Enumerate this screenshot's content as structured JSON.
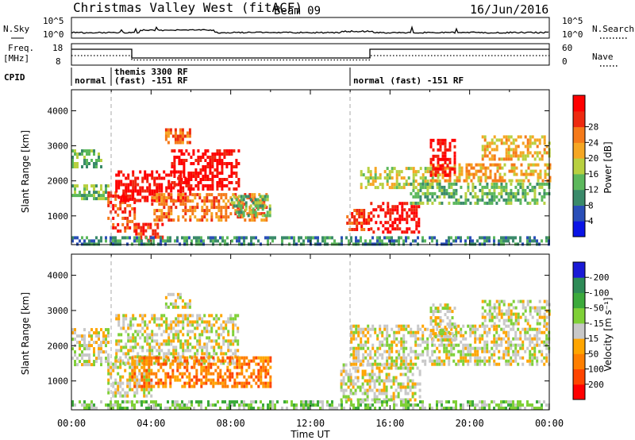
{
  "header": {
    "station": "Christmas Valley West (fitACF)",
    "beam": "Beam 09",
    "date": "16/Jun/2016"
  },
  "noise_panel": {
    "left_label": "N.Sky",
    "left_ticks": [
      "10^5",
      "10^0"
    ],
    "right_ticks": [
      "10^5",
      "10^0"
    ],
    "right_label": "N.Search"
  },
  "freq_panel": {
    "left_label_1": "Freq.",
    "left_label_2": "[MHz]",
    "left_ticks": [
      "18",
      "8"
    ],
    "right_ticks": [
      "60",
      "0"
    ],
    "right_label": "Nave"
  },
  "cpid": {
    "label": "CPID",
    "segments": [
      {
        "line1": "normal",
        "line2": ""
      },
      {
        "line1": "themis 3300 RF",
        "line2": "(fast) -151 RF"
      },
      {
        "line1": "normal (fast) -151 RF",
        "line2": ""
      }
    ]
  },
  "x_axis": {
    "label": "Time UT",
    "ticks": [
      "00:00",
      "04:00",
      "08:00",
      "12:00",
      "16:00",
      "20:00",
      "00:00"
    ]
  },
  "colors": {
    "power": [
      "#0a14e6",
      "#2a4fb8",
      "#3a8a6a",
      "#5cb85c",
      "#b8d040",
      "#f5a623",
      "#f57a1a",
      "#ee2a10",
      "#ff0000"
    ],
    "velocity": [
      "#1a1ad6",
      "#2e8b57",
      "#3caa3c",
      "#7fd037",
      "#c8c8c8",
      "#ffa500",
      "#ff7f00",
      "#ff4500",
      "#ff0000"
    ]
  },
  "chart_data": [
    {
      "type": "heatmap",
      "title": "Power",
      "xlabel": "Time UT",
      "ylabel": "Slant Range [km]",
      "xlim": [
        0,
        24
      ],
      "ylim": [
        180,
        4600
      ],
      "y_ticks": [
        "1000",
        "2000",
        "3000",
        "4000"
      ],
      "colorbar": {
        "label": "Power [dB]",
        "ticks": [
          "4",
          "8",
          "12",
          "16",
          "20",
          "24",
          "28"
        ]
      },
      "regions": [
        {
          "name": "A",
          "t": [
            0.0,
            1.8
          ],
          "range": [
            1450,
            1900
          ],
          "level": 3
        },
        {
          "name": "B",
          "t": [
            0.0,
            1.5
          ],
          "range": [
            2400,
            2900
          ],
          "level": 3
        },
        {
          "name": "C",
          "t": [
            1.8,
            3.2
          ],
          "range": [
            600,
            1700
          ],
          "level": 7
        },
        {
          "name": "D",
          "t": [
            3.2,
            4.6
          ],
          "range": [
            300,
            800
          ],
          "level": 7
        },
        {
          "name": "E",
          "t": [
            2.2,
            6.0
          ],
          "range": [
            1400,
            2300
          ],
          "level": 8
        },
        {
          "name": "F",
          "t": [
            5.0,
            8.4
          ],
          "range": [
            1800,
            2900
          ],
          "level": 8
        },
        {
          "name": "G",
          "t": [
            4.0,
            9.8
          ],
          "range": [
            900,
            1650
          ],
          "level": 6
        },
        {
          "name": "H",
          "t": [
            4.7,
            6.0
          ],
          "range": [
            3100,
            3500
          ],
          "level": 6
        },
        {
          "name": "I",
          "t": [
            8.0,
            10.0
          ],
          "range": [
            1000,
            1600
          ],
          "level": 3
        },
        {
          "name": "J",
          "t": [
            13.8,
            15.1
          ],
          "range": [
            600,
            1200
          ],
          "level": 7
        },
        {
          "name": "K",
          "t": [
            15.0,
            17.5
          ],
          "range": [
            500,
            1400
          ],
          "level": 8
        },
        {
          "name": "L",
          "t": [
            14.5,
            18.5
          ],
          "range": [
            1800,
            2400
          ],
          "level": 4
        },
        {
          "name": "M",
          "t": [
            17.0,
            24.0
          ],
          "range": [
            1350,
            1950
          ],
          "level": 3
        },
        {
          "name": "N",
          "t": [
            18.0,
            24.0
          ],
          "range": [
            2000,
            2500
          ],
          "level": 5
        },
        {
          "name": "O",
          "t": [
            18.0,
            19.2
          ],
          "range": [
            2200,
            3200
          ],
          "level": 8
        },
        {
          "name": "P",
          "t": [
            20.6,
            24.0
          ],
          "range": [
            2600,
            3300
          ],
          "level": 5
        },
        {
          "name": "Q",
          "t": [
            0.0,
            24.0
          ],
          "range": [
            180,
            420
          ],
          "level": 2
        }
      ]
    },
    {
      "type": "heatmap",
      "title": "Velocity",
      "xlabel": "Time UT",
      "ylabel": "Slant Range [km]",
      "xlim": [
        0,
        24
      ],
      "ylim": [
        180,
        4600
      ],
      "y_ticks": [
        "1000",
        "2000",
        "3000",
        "4000"
      ],
      "colorbar": {
        "label": "Velocity [m s⁻¹]",
        "ticks": [
          "200",
          "100",
          "50",
          "15",
          "-15",
          "-50",
          "-100",
          "-200"
        ]
      },
      "regions": [
        {
          "name": "A",
          "t": [
            0.0,
            1.8
          ],
          "range": [
            1450,
            2500
          ],
          "level": 4
        },
        {
          "name": "C",
          "t": [
            1.8,
            4.0
          ],
          "range": [
            600,
            1700
          ],
          "level": 4
        },
        {
          "name": "E",
          "t": [
            2.2,
            8.4
          ],
          "range": [
            1500,
            2900
          ],
          "level": 4
        },
        {
          "name": "G",
          "t": [
            3.0,
            10.0
          ],
          "range": [
            800,
            1700
          ],
          "level": 6
        },
        {
          "name": "H",
          "t": [
            4.7,
            6.0
          ],
          "range": [
            3100,
            3500
          ],
          "level": 4
        },
        {
          "name": "J",
          "t": [
            13.5,
            17.5
          ],
          "range": [
            500,
            1500
          ],
          "level": 4
        },
        {
          "name": "L",
          "t": [
            14.0,
            24.0
          ],
          "range": [
            1500,
            2600
          ],
          "level": 4
        },
        {
          "name": "O",
          "t": [
            18.0,
            19.2
          ],
          "range": [
            2200,
            3200
          ],
          "level": 4
        },
        {
          "name": "P",
          "t": [
            20.6,
            24.0
          ],
          "range": [
            2600,
            3300
          ],
          "level": 4
        },
        {
          "name": "Q",
          "t": [
            0.0,
            24.0
          ],
          "range": [
            180,
            450
          ],
          "level": 3
        }
      ]
    }
  ]
}
